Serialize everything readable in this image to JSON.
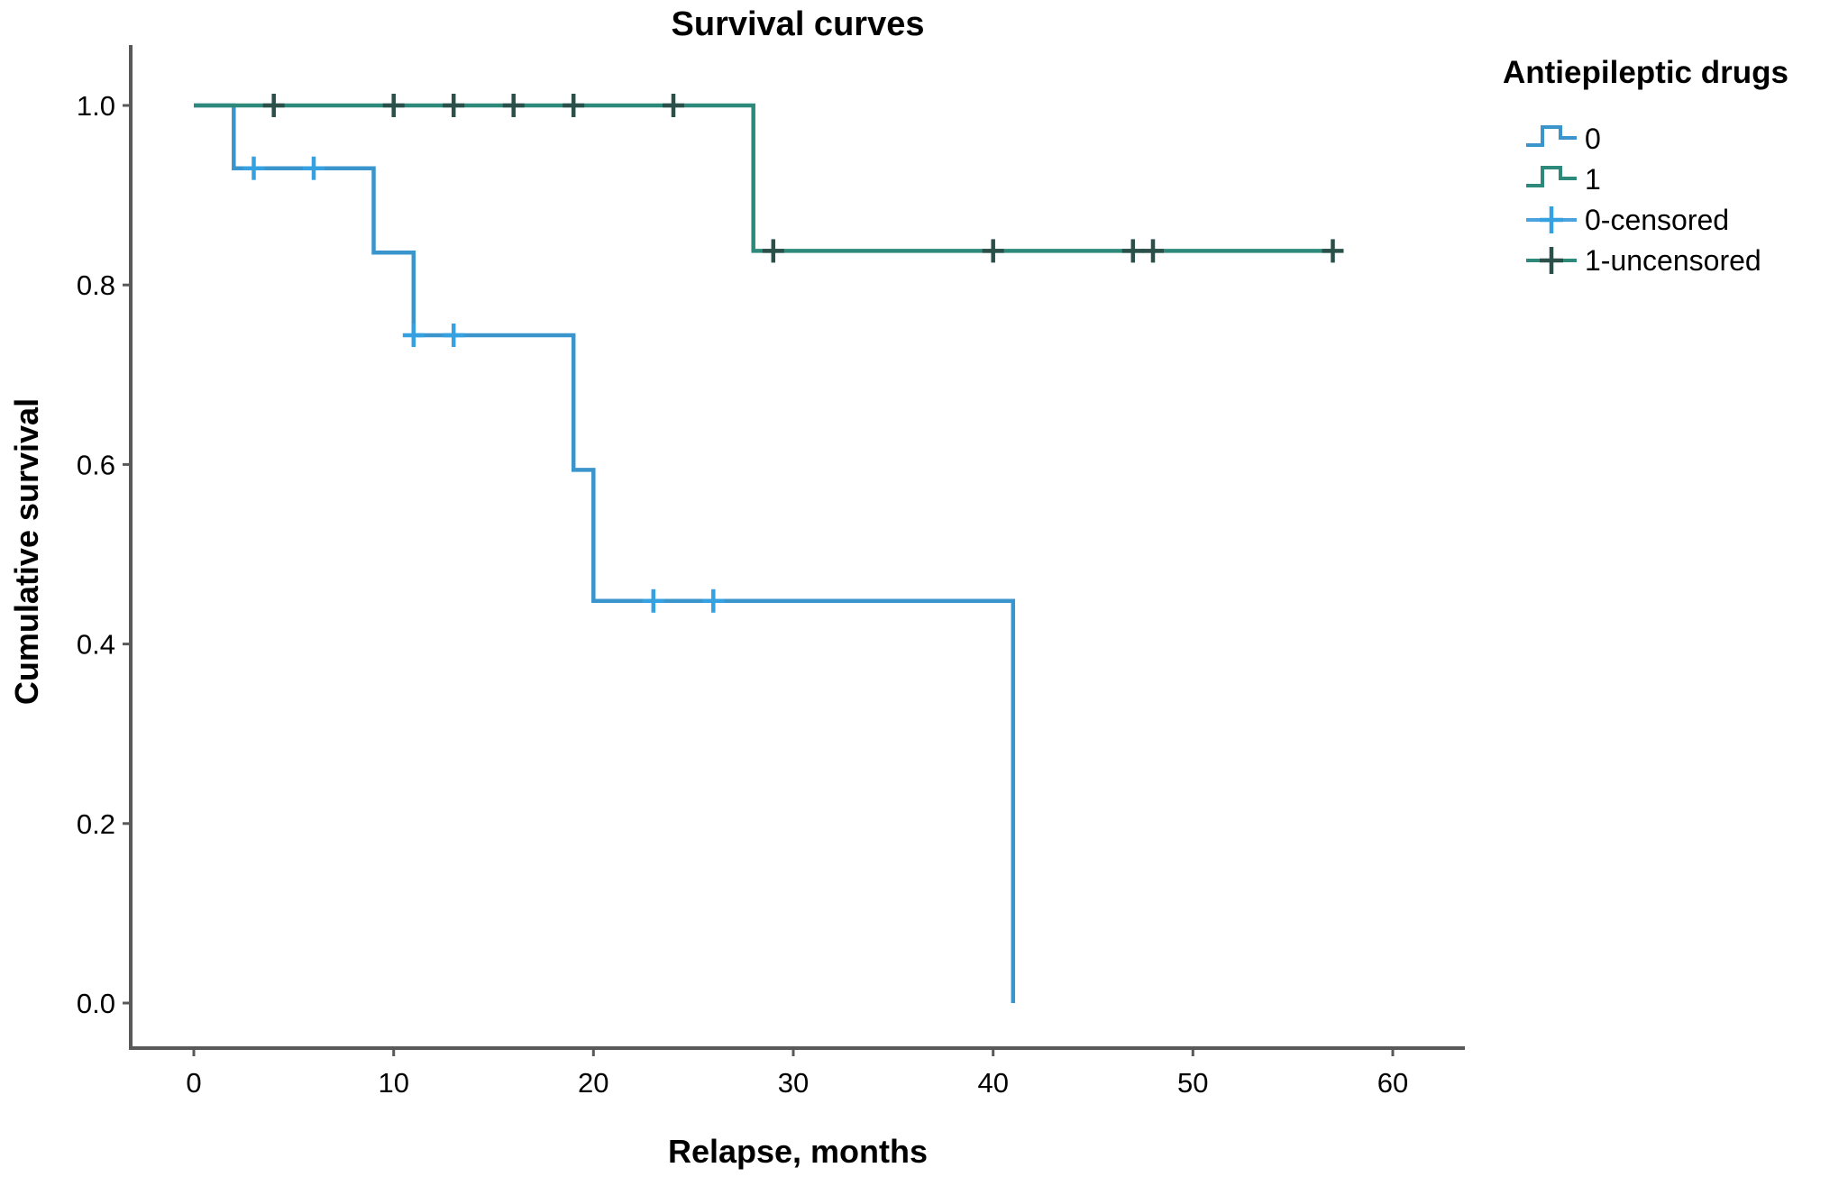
{
  "figure": {
    "title": "Survival curves",
    "x_title": "Relapse, months",
    "y_title": "Cumulative survival"
  },
  "legend": {
    "title": "Antiepileptic drugs",
    "entries": [
      {
        "label": "0",
        "glyph": "step-line-icon",
        "line_color": "#3b95cd",
        "cross_color": "#3b95cd"
      },
      {
        "label": "1",
        "glyph": "step-line-icon",
        "line_color": "#2d8a7b",
        "cross_color": "#2d8a7b"
      },
      {
        "label": "0-censored",
        "glyph": "censor-plus-icon",
        "line_color": "#4aa3dc",
        "cross_color": "#35a1e1"
      },
      {
        "label": "1-uncensored",
        "glyph": "censor-plus-icon",
        "line_color": "#2d8a7b",
        "cross_color": "#2b4f49"
      }
    ]
  },
  "chart_data": {
    "type": "line",
    "subtype": "kaplan-meier-step-plot",
    "title": "Survival curves",
    "xlabel": "Relapse, months",
    "ylabel": "Cumulative survival",
    "xlim": [
      0,
      60
    ],
    "ylim": [
      0.0,
      1.0
    ],
    "grid": "off",
    "legend_position": "outside-top-right",
    "legend_title": "Antiepileptic drugs",
    "x_axis": {
      "ticks": [
        0,
        10,
        20,
        30,
        40,
        50,
        60
      ]
    },
    "y_axis": {
      "ticks": [
        0.0,
        0.2,
        0.4,
        0.6,
        0.8,
        1.0
      ],
      "tick_decimals": 1
    },
    "axis_color": "#595959",
    "series": [
      {
        "name": "0",
        "color": "#3b95cd",
        "censor_color": "#35a1e1",
        "points": [
          [
            0,
            1.0
          ],
          [
            2,
            1.0
          ],
          [
            2,
            0.93
          ],
          [
            9,
            0.93
          ],
          [
            9,
            0.836
          ],
          [
            11,
            0.836
          ],
          [
            11,
            0.744
          ],
          [
            19,
            0.744
          ],
          [
            19,
            0.594
          ],
          [
            20,
            0.594
          ],
          [
            20,
            0.448
          ],
          [
            41,
            0.448
          ],
          [
            41,
            0.0
          ]
        ],
        "censored": [
          [
            3,
            0.93
          ],
          [
            6,
            0.93
          ],
          [
            11,
            0.744
          ],
          [
            13,
            0.744
          ],
          [
            23,
            0.448
          ],
          [
            26,
            0.448
          ]
        ]
      },
      {
        "name": "1",
        "color": "#2d8a7b",
        "censor_color": "#2b4f49",
        "points": [
          [
            0,
            1.0
          ],
          [
            28,
            1.0
          ],
          [
            28,
            0.838
          ],
          [
            57,
            0.838
          ]
        ],
        "censored": [
          [
            4,
            1.0
          ],
          [
            10,
            1.0
          ],
          [
            13,
            1.0
          ],
          [
            16,
            1.0
          ],
          [
            19,
            1.0
          ],
          [
            24,
            1.0
          ],
          [
            29,
            0.838
          ],
          [
            40,
            0.838
          ],
          [
            47,
            0.838
          ],
          [
            48,
            0.838
          ],
          [
            57,
            0.838
          ]
        ]
      }
    ]
  }
}
